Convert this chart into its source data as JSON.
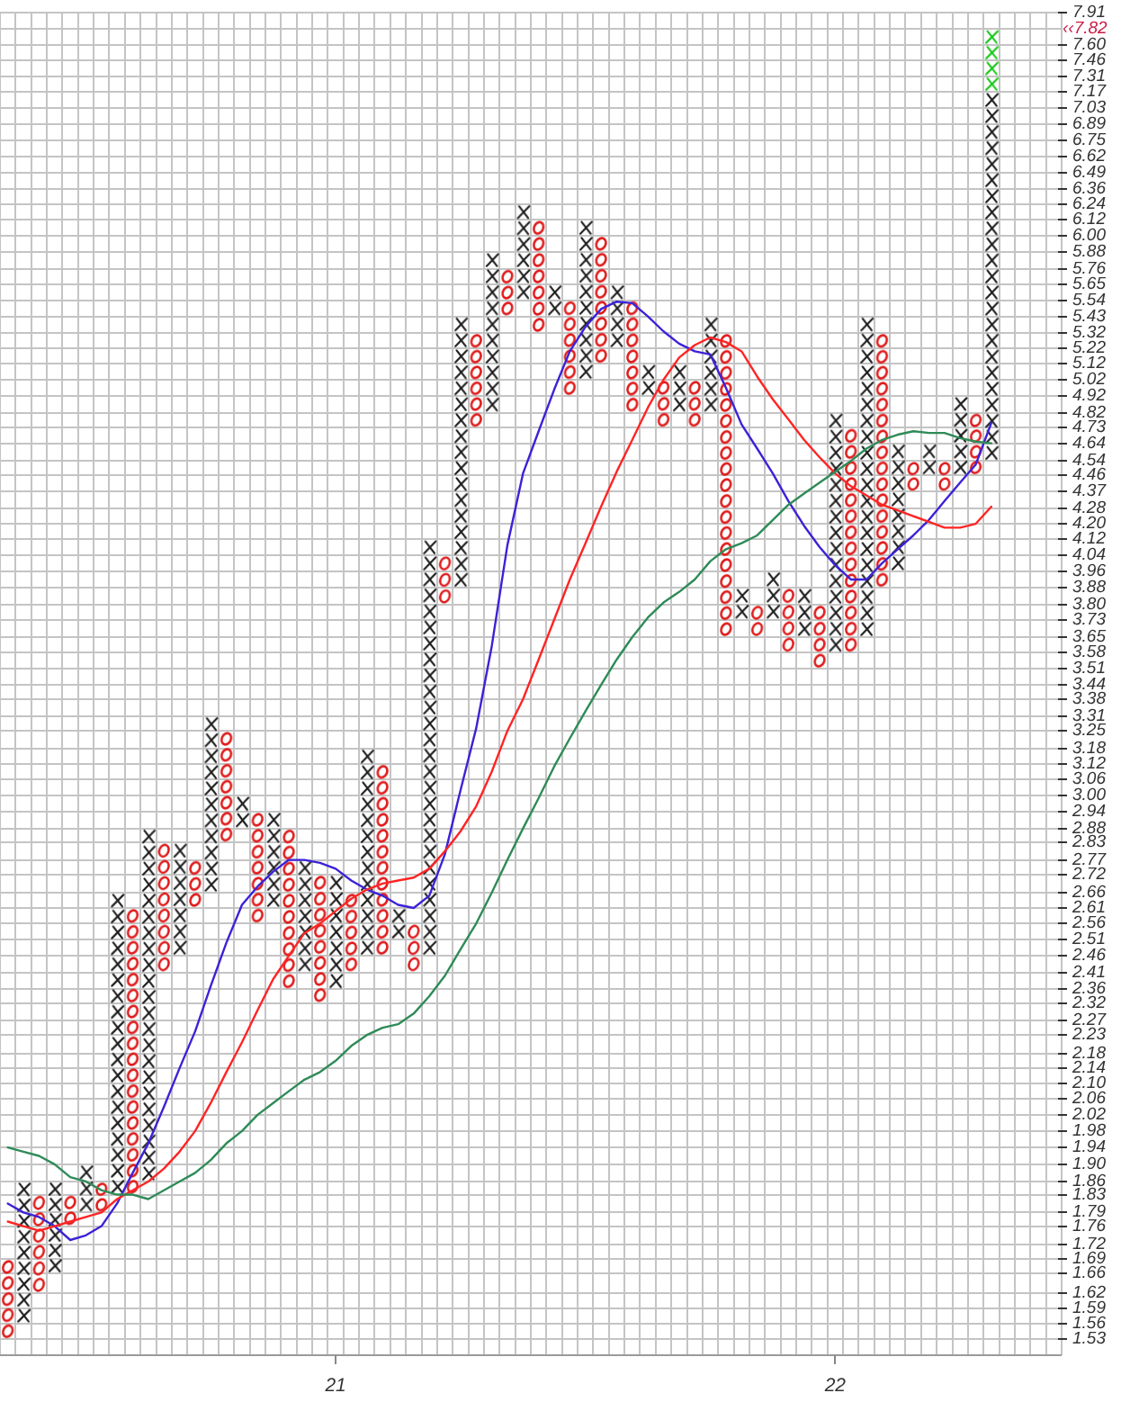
{
  "chart_data": {
    "type": "bar",
    "log": "y",
    "grid": true,
    "categories": [
      null,
      null,
      null,
      null,
      null,
      null,
      null,
      null,
      null,
      null,
      null,
      null,
      null,
      null,
      null,
      null,
      null,
      null,
      null,
      null,
      null,
      "21",
      null,
      null,
      null,
      null,
      null,
      null,
      null,
      null,
      null,
      null,
      null,
      null,
      null,
      null,
      null,
      null,
      null,
      null,
      null,
      null,
      null,
      null,
      null,
      null,
      null,
      null,
      null,
      null,
      null,
      null,
      null,
      "22",
      null,
      null,
      null,
      null,
      null,
      null,
      null,
      null,
      null,
      null,
      null,
      null,
      null,
      null
    ],
    "ylim": [
      1.5,
      7.91
    ],
    "yticks": [
      1.53,
      1.56,
      1.59,
      1.62,
      1.66,
      1.69,
      1.72,
      1.76,
      1.79,
      1.83,
      1.86,
      {
        "value": 1.9,
        "label": "1.90"
      },
      1.94,
      1.98,
      2.02,
      2.06,
      {
        "value": 2.1,
        "label": "2.10"
      },
      2.14,
      2.18,
      2.23,
      2.27,
      2.32,
      2.36,
      2.41,
      2.46,
      2.51,
      2.56,
      2.61,
      2.66,
      2.72,
      2.77,
      2.83,
      2.88,
      2.94,
      {
        "value": 3,
        "label": "3.00"
      },
      3.06,
      3.12,
      3.18,
      3.25,
      3.31,
      3.38,
      3.44,
      3.51,
      3.58,
      3.65,
      3.73,
      {
        "value": 3.8,
        "label": "3.80"
      },
      3.88,
      3.96,
      4.04,
      4.12,
      {
        "value": 4.2,
        "label": "4.20"
      },
      4.28,
      4.37,
      4.46,
      4.54,
      4.64,
      4.73,
      4.82,
      4.92,
      5.02,
      5.12,
      5.22,
      5.32,
      5.43,
      5.54,
      5.65,
      5.76,
      5.88,
      {
        "value": 6,
        "label": "6.00"
      },
      6.12,
      6.24,
      6.36,
      6.49,
      6.62,
      6.75,
      6.89,
      7.03,
      7.17,
      7.31,
      7.46,
      {
        "value": 7.6,
        "label": "7.60"
      },
      7.91
    ],
    "annotations": [
      "‹‹7.82"
    ],
    "series": [
      {
        "marker": "cross",
        "color": "#1e1e1e",
        "base": [
          null,
          1.56,
          null,
          1.66,
          null,
          1.79,
          null,
          1.83,
          null,
          1.86,
          null,
          2.46,
          null,
          2.66,
          null,
          2.88,
          null,
          2.61,
          null,
          2.41,
          null,
          2.36,
          null,
          2.46,
          null,
          2.51,
          null,
          2.46,
          null,
          3.88,
          null,
          4.82,
          null,
          5.54,
          null,
          5.43,
          null,
          5.02,
          null,
          5.22,
          null,
          4.92,
          null,
          4.82,
          null,
          4.82,
          null,
          3.73,
          null,
          3.73,
          null,
          3.65,
          null,
          3.58,
          null,
          3.65,
          null,
          3.96,
          null,
          4.46,
          null,
          4.46,
          null,
          4.54,
          null,
          null,
          null,
          null
        ],
        "values": [
          null,
          0.3,
          null,
          0.2,
          null,
          0.11,
          null,
          0.83,
          null,
          1.02,
          null,
          0.37,
          null,
          0.65,
          null,
          0.12,
          null,
          0.33,
          null,
          0.36,
          null,
          0.36,
          null,
          0.72,
          null,
          0.1,
          null,
          1.66,
          null,
          1.55,
          null,
          1.06,
          null,
          0.7,
          null,
          0.22,
          null,
          1.1,
          null,
          0.43,
          null,
          0.2,
          null,
          0.3,
          null,
          0.61,
          null,
          0.15,
          null,
          0.23,
          null,
          0.23,
          null,
          1.24,
          null,
          1.78,
          null,
          0.68,
          null,
          0.18,
          null,
          0.46,
          null,
          2.63,
          null,
          null,
          null,
          null
        ]
      },
      {
        "marker": "circle",
        "color": "#e01c1c",
        "base": [
          1.53,
          null,
          1.62,
          null,
          1.76,
          null,
          1.79,
          null,
          1.83,
          null,
          2.41,
          null,
          2.61,
          null,
          2.83,
          null,
          2.56,
          null,
          2.36,
          null,
          2.32,
          null,
          2.41,
          null,
          2.46,
          null,
          2.41,
          null,
          3.8,
          null,
          4.73,
          null,
          5.43,
          null,
          5.32,
          null,
          4.92,
          null,
          5.12,
          null,
          4.82,
          null,
          4.73,
          null,
          4.73,
          null,
          3.65,
          null,
          3.65,
          null,
          3.58,
          null,
          3.51,
          null,
          3.58,
          null,
          3.88,
          null,
          4.37,
          null,
          4.37,
          null,
          4.46,
          null,
          null,
          null,
          null,
          null
        ],
        "values": [
          0.16,
          null,
          0.21,
          null,
          0.07,
          null,
          0.07,
          null,
          0.78,
          null,
          0.42,
          null,
          0.16,
          null,
          0.42,
          null,
          0.38,
          null,
          0.52,
          null,
          0.4,
          null,
          0.25,
          null,
          0.66,
          null,
          0.15,
          null,
          0.24,
          null,
          0.59,
          null,
          0.33,
          null,
          0.8,
          null,
          0.62,
          null,
          0.88,
          null,
          0.72,
          null,
          0.29,
          null,
          0.29,
          null,
          1.67,
          null,
          0.15,
          null,
          0.3,
          null,
          0.29,
          null,
          1.15,
          null,
          1.44,
          null,
          0.17,
          null,
          0.17,
          null,
          0.36,
          null,
          null,
          null,
          null,
          null
        ]
      },
      {
        "marker": "cross",
        "color": "#1ec81e",
        "base": [
          null,
          null,
          null,
          null,
          null,
          null,
          null,
          null,
          null,
          null,
          null,
          null,
          null,
          null,
          null,
          null,
          null,
          null,
          null,
          null,
          null,
          null,
          null,
          null,
          null,
          null,
          null,
          null,
          null,
          null,
          null,
          null,
          null,
          null,
          null,
          null,
          null,
          null,
          null,
          null,
          null,
          null,
          null,
          null,
          null,
          null,
          null,
          null,
          null,
          null,
          null,
          null,
          null,
          null,
          null,
          null,
          null,
          null,
          null,
          null,
          null,
          null,
          null,
          7.17,
          null,
          null,
          null,
          null
        ],
        "values": [
          null,
          null,
          null,
          null,
          null,
          null,
          null,
          null,
          null,
          null,
          null,
          null,
          null,
          null,
          null,
          null,
          null,
          null,
          null,
          null,
          null,
          null,
          null,
          null,
          null,
          null,
          null,
          null,
          null,
          null,
          null,
          null,
          null,
          null,
          null,
          null,
          null,
          null,
          null,
          null,
          null,
          null,
          null,
          null,
          null,
          null,
          null,
          null,
          null,
          null,
          null,
          null,
          null,
          null,
          null,
          null,
          null,
          null,
          null,
          null,
          null,
          null,
          null,
          0.58,
          null,
          null,
          null,
          null
        ]
      },
      {
        "type": "line",
        "color": "#3b22d8",
        "values": [
          1.81,
          1.79,
          1.78,
          1.76,
          1.73,
          1.74,
          1.76,
          1.81,
          1.88,
          1.95,
          2.04,
          2.14,
          2.24,
          2.37,
          2.5,
          2.62,
          2.68,
          2.73,
          2.77,
          2.77,
          2.76,
          2.74,
          2.7,
          2.67,
          2.65,
          2.62,
          2.61,
          2.65,
          2.79,
          3.02,
          3.26,
          3.61,
          4.09,
          4.47,
          4.71,
          4.96,
          5.2,
          5.36,
          5.48,
          5.53,
          5.52,
          5.43,
          5.33,
          5.25,
          5.2,
          5.18,
          4.97,
          4.75,
          4.61,
          4.47,
          4.32,
          4.19,
          4.08,
          3.99,
          3.92,
          3.92,
          4,
          4.07,
          4.14,
          4.22,
          4.32,
          4.42,
          4.52,
          4.76,
          null,
          null,
          null,
          null
        ]
      },
      {
        "type": "line",
        "color": "#ff2424",
        "values": [
          1.77,
          1.76,
          1.75,
          1.76,
          1.77,
          1.78,
          1.79,
          1.82,
          1.84,
          1.86,
          1.89,
          1.93,
          1.98,
          2.05,
          2.13,
          2.21,
          2.3,
          2.39,
          2.46,
          2.53,
          2.56,
          2.6,
          2.64,
          2.67,
          2.69,
          2.7,
          2.71,
          2.74,
          2.8,
          2.87,
          2.96,
          3.09,
          3.25,
          3.38,
          3.55,
          3.73,
          3.92,
          4.1,
          4.29,
          4.48,
          4.66,
          4.85,
          5.02,
          5.16,
          5.24,
          5.29,
          5.26,
          5.2,
          5.04,
          4.9,
          4.78,
          4.66,
          4.56,
          4.47,
          4.4,
          4.35,
          4.3,
          4.27,
          4.24,
          4.21,
          4.18,
          4.18,
          4.2,
          4.29,
          null,
          null,
          null,
          null
        ]
      },
      {
        "type": "line",
        "color": "#2e8b57",
        "values": [
          1.94,
          1.93,
          1.92,
          1.9,
          1.87,
          1.86,
          1.84,
          1.83,
          1.83,
          1.82,
          1.84,
          1.86,
          1.88,
          1.91,
          1.95,
          1.98,
          2.02,
          2.05,
          2.08,
          2.11,
          2.13,
          2.16,
          2.2,
          2.23,
          2.25,
          2.26,
          2.29,
          2.34,
          2.4,
          2.48,
          2.56,
          2.66,
          2.77,
          2.88,
          2.99,
          3.11,
          3.22,
          3.33,
          3.44,
          3.55,
          3.65,
          3.74,
          3.81,
          3.86,
          3.92,
          4.01,
          4.07,
          4.1,
          4.14,
          4.22,
          4.3,
          4.36,
          4.42,
          4.48,
          4.54,
          4.61,
          4.66,
          4.69,
          4.71,
          4.7,
          4.7,
          4.67,
          4.65,
          4.64,
          null,
          null,
          null,
          null
        ]
      }
    ]
  }
}
